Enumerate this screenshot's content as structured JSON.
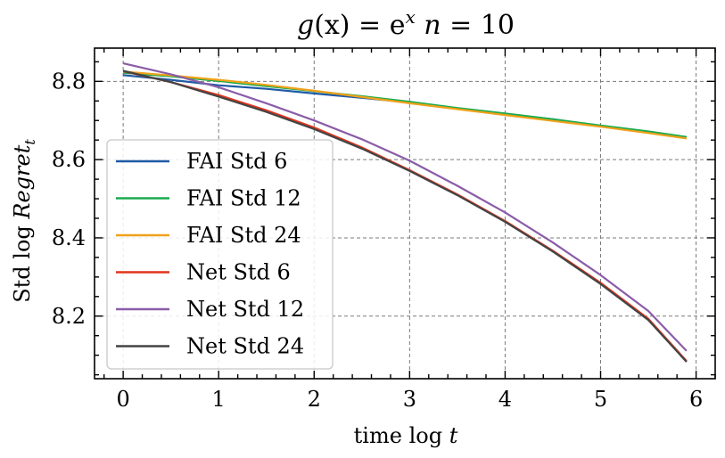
{
  "chart_data": {
    "type": "line",
    "title": {
      "prefix": "g",
      "arg": "(x)",
      "eq": " = e",
      "sup": "x",
      "n": " n",
      "eq2": " = 10"
    },
    "xlabel": {
      "text": "time log ",
      "var": "t"
    },
    "ylabel": {
      "text": "Std log ",
      "var": "Regret",
      "sub": "t"
    },
    "xlim": [
      -0.3,
      6.2
    ],
    "ylim": [
      8.04,
      8.885
    ],
    "xticks": [
      0,
      1,
      2,
      3,
      4,
      5,
      6
    ],
    "xtick_labels": [
      "0",
      "1",
      "2",
      "3",
      "4",
      "5",
      "6"
    ],
    "yticks": [
      8.2,
      8.4,
      8.6,
      8.8
    ],
    "ytick_labels": [
      "8.2",
      "8.4",
      "8.6",
      "8.8"
    ],
    "grid": true,
    "legend_position": "lower-left",
    "x": [
      0,
      0.5,
      1,
      1.5,
      2,
      2.5,
      3,
      3.5,
      4,
      4.5,
      5,
      5.5,
      5.9
    ],
    "series": [
      {
        "name": "FAI Std 6",
        "color": "#1f5aa6",
        "values": [
          8.816,
          8.804,
          8.79,
          8.781,
          8.769,
          8.758,
          8.746,
          8.731,
          8.716,
          8.703,
          8.686,
          8.67,
          8.656
        ]
      },
      {
        "name": "FAI Std 12",
        "color": "#1aab4e",
        "values": [
          8.822,
          8.813,
          8.801,
          8.788,
          8.775,
          8.762,
          8.748,
          8.732,
          8.718,
          8.703,
          8.687,
          8.672,
          8.658
        ]
      },
      {
        "name": "FAI Std 24",
        "color": "#f0a11a",
        "values": [
          8.825,
          8.815,
          8.804,
          8.791,
          8.776,
          8.76,
          8.744,
          8.729,
          8.714,
          8.699,
          8.684,
          8.668,
          8.654
        ]
      },
      {
        "name": "Net Std 6",
        "color": "#e2341d",
        "values": [
          8.826,
          8.798,
          8.765,
          8.726,
          8.682,
          8.631,
          8.573,
          8.511,
          8.443,
          8.367,
          8.285,
          8.193,
          8.085
        ]
      },
      {
        "name": "Net Std 12",
        "color": "#8a5ca8",
        "values": [
          8.846,
          8.818,
          8.785,
          8.744,
          8.7,
          8.652,
          8.597,
          8.533,
          8.465,
          8.388,
          8.305,
          8.213,
          8.111
        ]
      },
      {
        "name": "Net Std 24",
        "color": "#444444",
        "values": [
          8.827,
          8.798,
          8.761,
          8.722,
          8.678,
          8.628,
          8.571,
          8.509,
          8.441,
          8.365,
          8.282,
          8.19,
          8.083
        ]
      }
    ]
  }
}
